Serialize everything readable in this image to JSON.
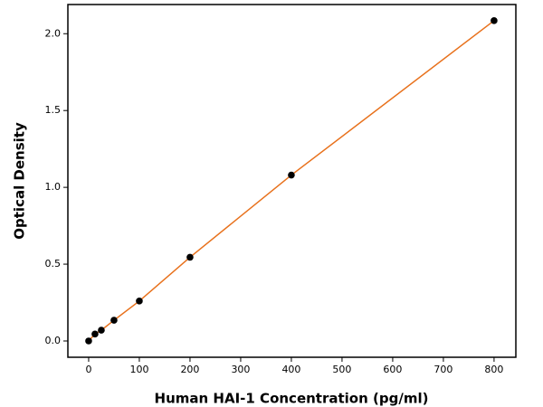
{
  "chart_data": {
    "type": "scatter",
    "xlabel": "Human HAI-1 Concentration (pg/ml)",
    "ylabel": "Optical Density",
    "x": [
      0,
      12.5,
      25,
      50,
      100,
      200,
      400,
      800
    ],
    "series": [
      {
        "color": "#000000",
        "line_color": "#e8711c",
        "values": [
          0,
          0.045,
          0.07,
          0.135,
          0.26,
          0.545,
          1.08,
          2.085
        ]
      }
    ],
    "xlim": [
      -41,
      843
    ],
    "ylim": [
      -0.106,
      2.19
    ],
    "xticks": [
      0,
      100,
      200,
      300,
      400,
      500,
      600,
      700,
      800
    ],
    "yticks": [
      {
        "value": 0,
        "label": "0.0"
      },
      0.5,
      {
        "value": 1,
        "label": "1.0"
      },
      1.5,
      {
        "value": 2,
        "label": "2.0"
      }
    ],
    "grid": false
  }
}
